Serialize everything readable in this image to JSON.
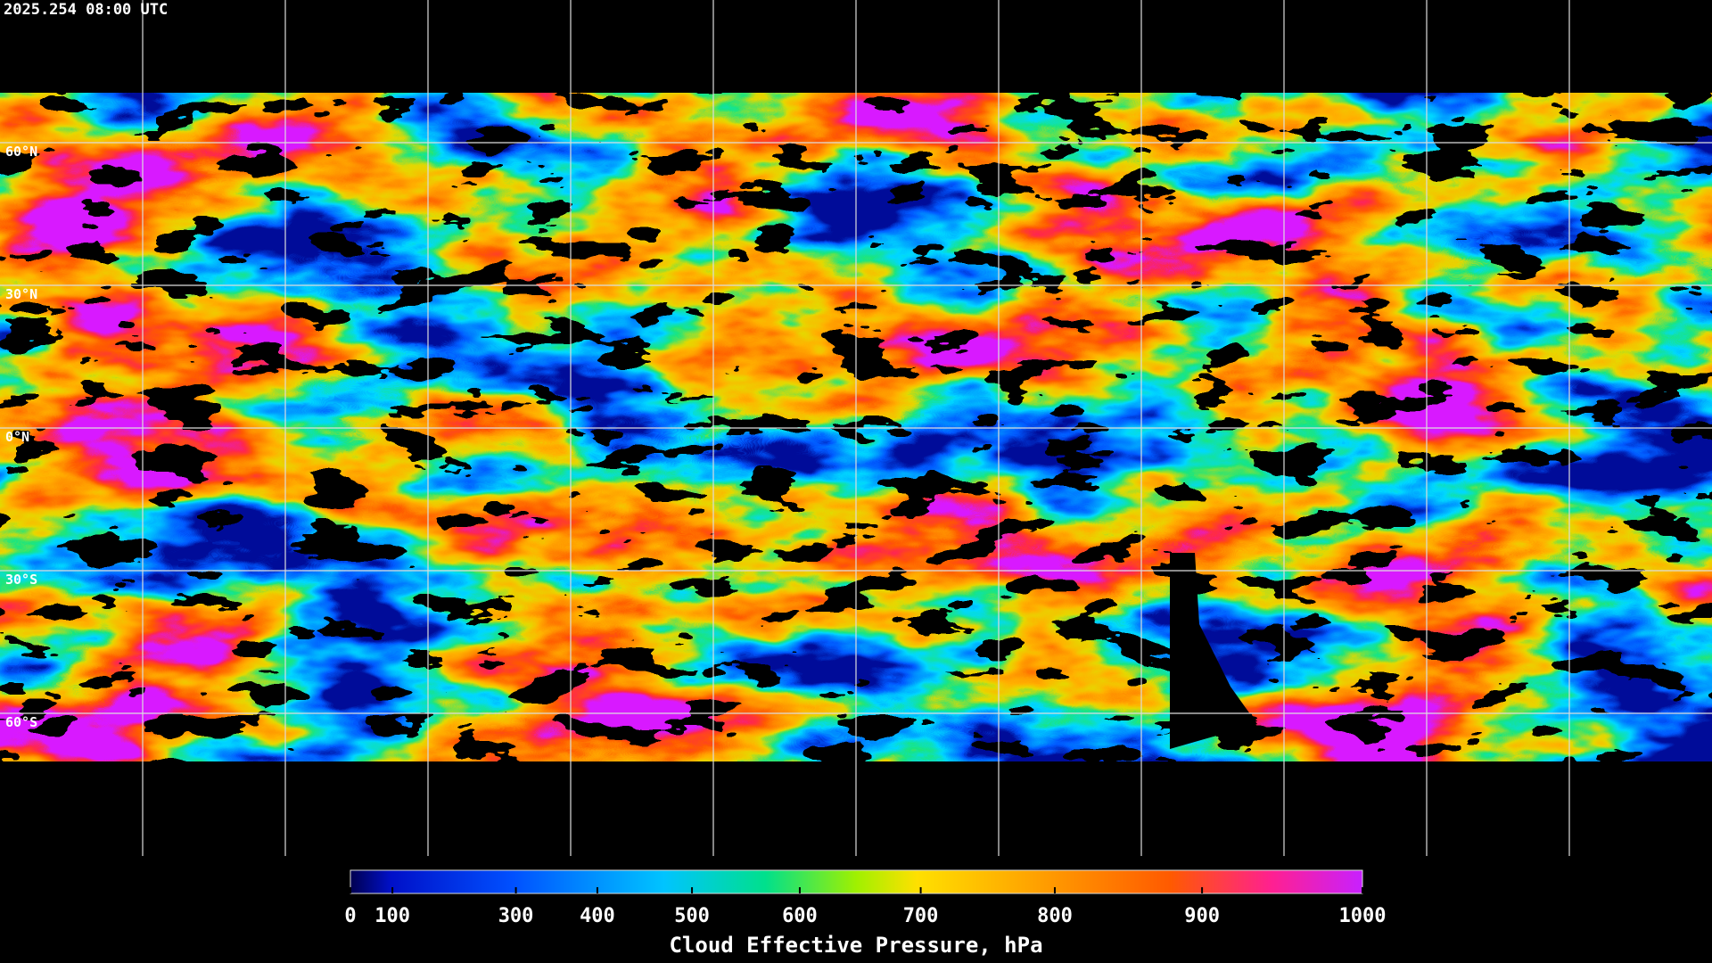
{
  "header": {
    "timestamp": "2025.254 08:00 UTC"
  },
  "map": {
    "grid_latitudes": [
      {
        "value": 60,
        "label": "60°N"
      },
      {
        "value": 30,
        "label": "30°N"
      },
      {
        "value": 0,
        "label": "0°N"
      },
      {
        "value": -30,
        "label": "30°S"
      },
      {
        "value": -60,
        "label": "60°S"
      }
    ]
  },
  "colorbar": {
    "title": "Cloud Effective Pressure, hPa",
    "range": [
      0,
      1000
    ],
    "ticks": [
      0,
      100,
      300,
      400,
      500,
      600,
      700,
      800,
      900,
      1000
    ]
  }
}
